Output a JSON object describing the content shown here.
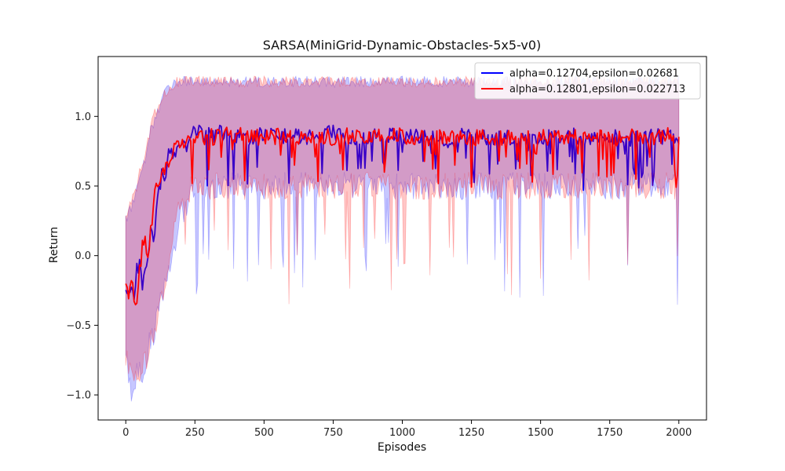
{
  "chart_data": {
    "type": "line",
    "title": "SARSA(MiniGrid-Dynamic-Obstacles-5x5-v0)",
    "xlabel": "Episodes",
    "ylabel": "Return",
    "xlim": [
      -100,
      2100
    ],
    "ylim": [
      -1.18,
      1.43
    ],
    "xticks": [
      0,
      250,
      500,
      750,
      1000,
      1250,
      1500,
      1750,
      2000
    ],
    "yticks": [
      -1.0,
      -0.5,
      0.0,
      0.5,
      1.0
    ],
    "xtick_labels": [
      "0",
      "250",
      "500",
      "750",
      "1000",
      "1250",
      "1500",
      "1750",
      "2000"
    ],
    "ytick_labels": [
      "−1.0",
      "−0.5",
      "0.0",
      "0.5",
      "1.0"
    ],
    "grid": false,
    "legend_position": "top-right",
    "series": [
      {
        "name": "alpha=0.12704,epsilon=0.02681",
        "color": "#0000ff",
        "band_color": "#0000ff",
        "x": [
          0,
          10,
          20,
          30,
          40,
          50,
          60,
          70,
          80,
          90,
          100,
          110,
          120,
          130,
          140,
          150,
          160,
          170,
          180,
          190,
          200,
          210,
          220,
          230,
          240,
          250,
          300,
          350,
          400,
          450,
          500,
          550,
          600,
          650,
          700,
          750,
          800,
          850,
          900,
          950,
          1000,
          1050,
          1100,
          1150,
          1200,
          1250,
          1300,
          1350,
          1400,
          1450,
          1500,
          1550,
          1600,
          1650,
          1700,
          1750,
          1800,
          1850,
          1900,
          1950,
          2000
        ],
        "y": [
          -0.22,
          -0.3,
          -0.2,
          -0.32,
          -0.1,
          -0.05,
          -0.2,
          -0.05,
          0.0,
          0.25,
          0.1,
          0.3,
          0.45,
          0.6,
          0.55,
          0.7,
          0.72,
          0.75,
          0.7,
          0.8,
          0.82,
          0.8,
          0.78,
          0.85,
          0.88,
          0.9,
          0.86,
          0.88,
          0.87,
          0.85,
          0.88,
          0.86,
          0.87,
          0.84,
          0.86,
          0.88,
          0.86,
          0.85,
          0.87,
          0.86,
          0.85,
          0.87,
          0.86,
          0.84,
          0.86,
          0.85,
          0.84,
          0.86,
          0.85,
          0.87,
          0.85,
          0.84,
          0.86,
          0.85,
          0.84,
          0.86,
          0.85,
          0.84,
          0.85,
          0.86,
          0.86
        ],
        "lower": [
          -0.7,
          -0.85,
          -0.95,
          -0.9,
          -0.85,
          -0.8,
          -0.85,
          -0.75,
          -0.7,
          -0.6,
          -0.6,
          -0.5,
          -0.4,
          -0.3,
          -0.2,
          -0.15,
          -0.1,
          0.0,
          0.1,
          0.2,
          0.3,
          0.3,
          0.35,
          0.4,
          0.45,
          0.45,
          0.5,
          0.5,
          0.5,
          0.5,
          0.5,
          0.5,
          0.5,
          0.5,
          0.5,
          0.5,
          0.5,
          0.5,
          0.5,
          0.5,
          0.5,
          0.5,
          0.5,
          0.5,
          0.5,
          0.5,
          0.5,
          0.5,
          0.5,
          0.5,
          0.5,
          0.5,
          0.5,
          0.5,
          0.5,
          0.5,
          0.5,
          0.5,
          0.5,
          0.5,
          0.5
        ],
        "upper": [
          0.25,
          0.3,
          0.35,
          0.4,
          0.5,
          0.55,
          0.6,
          0.7,
          0.8,
          0.9,
          0.95,
          1.0,
          1.05,
          1.1,
          1.15,
          1.2,
          1.22,
          1.24,
          1.25,
          1.25,
          1.25,
          1.25,
          1.25,
          1.25,
          1.25,
          1.25,
          1.25,
          1.25,
          1.25,
          1.25,
          1.25,
          1.25,
          1.25,
          1.25,
          1.25,
          1.25,
          1.25,
          1.25,
          1.25,
          1.25,
          1.25,
          1.25,
          1.25,
          1.25,
          1.25,
          1.25,
          1.25,
          1.25,
          1.25,
          1.25,
          1.25,
          1.25,
          1.25,
          1.25,
          1.25,
          1.25,
          1.25,
          1.25,
          1.25,
          1.25,
          1.25
        ]
      },
      {
        "name": "alpha=0.12801,epsilon=0.022713",
        "color": "#ff0000",
        "band_color": "#ff0000",
        "x": [
          0,
          10,
          20,
          30,
          40,
          50,
          60,
          70,
          80,
          90,
          100,
          110,
          120,
          130,
          140,
          150,
          160,
          170,
          180,
          190,
          200,
          210,
          220,
          230,
          240,
          250,
          300,
          350,
          400,
          450,
          500,
          550,
          600,
          650,
          700,
          750,
          800,
          850,
          900,
          950,
          1000,
          1050,
          1100,
          1150,
          1200,
          1250,
          1300,
          1350,
          1400,
          1450,
          1500,
          1550,
          1600,
          1650,
          1700,
          1750,
          1800,
          1850,
          1900,
          1950,
          2000
        ],
        "y": [
          -0.22,
          -0.25,
          -0.2,
          -0.3,
          -0.35,
          -0.1,
          0.05,
          0.1,
          0.0,
          0.2,
          0.35,
          0.5,
          0.55,
          0.6,
          0.62,
          0.66,
          0.7,
          0.74,
          0.76,
          0.8,
          0.82,
          0.82,
          0.83,
          0.85,
          0.86,
          0.86,
          0.85,
          0.86,
          0.87,
          0.86,
          0.85,
          0.86,
          0.86,
          0.85,
          0.86,
          0.85,
          0.86,
          0.84,
          0.86,
          0.85,
          0.86,
          0.85,
          0.84,
          0.86,
          0.85,
          0.84,
          0.86,
          0.84,
          0.85,
          0.86,
          0.85,
          0.84,
          0.86,
          0.85,
          0.86,
          0.84,
          0.85,
          0.86,
          0.85,
          0.86,
          0.86
        ],
        "lower": [
          -0.7,
          -0.8,
          -0.9,
          -0.92,
          -0.9,
          -0.85,
          -0.8,
          -0.75,
          -0.7,
          -0.6,
          -0.55,
          -0.45,
          -0.35,
          -0.25,
          -0.2,
          -0.1,
          0.0,
          0.1,
          0.2,
          0.3,
          0.35,
          0.4,
          0.4,
          0.45,
          0.5,
          0.5,
          0.5,
          0.5,
          0.5,
          0.5,
          0.5,
          0.5,
          0.5,
          0.5,
          0.5,
          0.5,
          0.5,
          0.5,
          0.5,
          0.5,
          0.5,
          0.5,
          0.5,
          0.5,
          0.5,
          0.5,
          0.5,
          0.5,
          0.5,
          0.5,
          0.5,
          0.5,
          0.5,
          0.5,
          0.5,
          0.5,
          0.5,
          0.5,
          0.5,
          0.5,
          0.5
        ],
        "upper": [
          0.25,
          0.3,
          0.4,
          0.45,
          0.5,
          0.6,
          0.65,
          0.75,
          0.85,
          0.9,
          1.0,
          1.05,
          1.1,
          1.12,
          1.15,
          1.18,
          1.2,
          1.22,
          1.24,
          1.25,
          1.25,
          1.25,
          1.25,
          1.25,
          1.25,
          1.25,
          1.25,
          1.25,
          1.25,
          1.25,
          1.25,
          1.25,
          1.25,
          1.25,
          1.25,
          1.25,
          1.25,
          1.25,
          1.25,
          1.25,
          1.25,
          1.25,
          1.25,
          1.25,
          1.25,
          1.25,
          1.25,
          1.25,
          1.25,
          1.25,
          1.25,
          1.25,
          1.25,
          1.25,
          1.25,
          1.25,
          1.25,
          1.25,
          1.25,
          1.25,
          1.25
        ]
      }
    ]
  }
}
